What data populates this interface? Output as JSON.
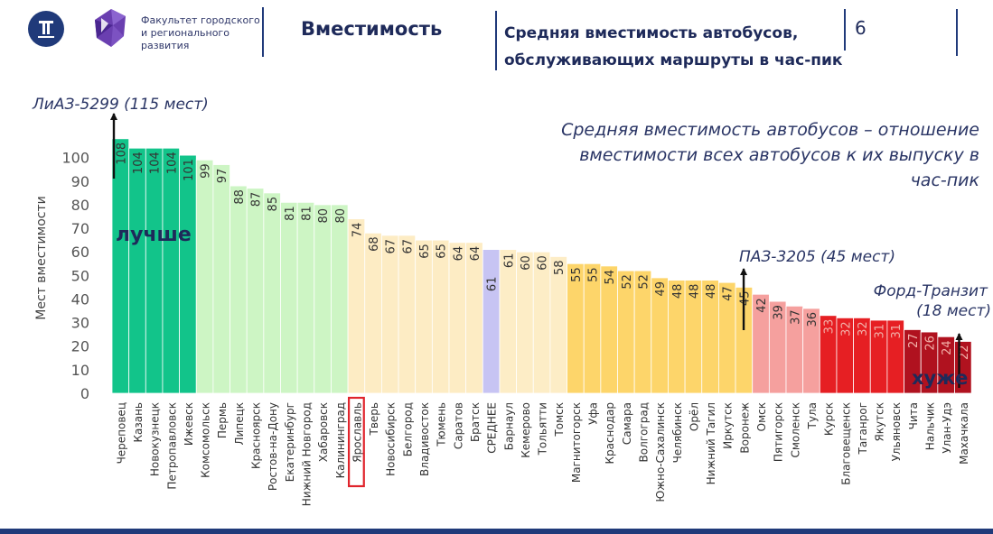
{
  "header": {
    "faculty": "Факультет городского и регионального развития",
    "section_title": "Вместимость",
    "subtitle": "Средняя вместимость автобусов, обслуживающих маршруты в час-пик",
    "page_number": "6",
    "colors": {
      "navy": "#203a7a",
      "purple": "#6a3fb0"
    }
  },
  "definition": "Средняя вместимость автобусов – отношение вместимости всех автобусов к их выпуску в час-пик",
  "chart_data": {
    "type": "bar",
    "ylabel": "Мест вместимости",
    "ylim": [
      0,
      110
    ],
    "yticks": [
      0,
      10,
      20,
      30,
      40,
      50,
      60,
      70,
      80,
      90,
      100
    ],
    "grid": false,
    "highlighted_category": "Ярославль",
    "categories": [
      "Череповец",
      "Казань",
      "Новокузнецк",
      "Петропавловск",
      "Ижевск",
      "Комсомольск",
      "Пермь",
      "Липецк",
      "Красноярск",
      "Ростов-на-Дону",
      "Екатеринбург",
      "Нижний Новгород",
      "Хабаровск",
      "Калининград",
      "Ярославль",
      "Тверь",
      "Новосибирск",
      "Белгород",
      "Владивосток",
      "Тюмень",
      "Саратов",
      "Братск",
      "СРЕДНЕЕ",
      "Барнаул",
      "Кемерово",
      "Тольятти",
      "Томск",
      "Магнитогорск",
      "Уфа",
      "Краснодар",
      "Самара",
      "Волгоград",
      "Южно-Сахалинск",
      "Челябинск",
      "Орёл",
      "Нижний Тагил",
      "Иркутск",
      "Воронеж",
      "Омск",
      "Пятигорск",
      "Смоленск",
      "Тула",
      "Курск",
      "Благовещенск",
      "Таганрог",
      "Якутск",
      "Ульяновск",
      "Чита",
      "Нальчик",
      "Улан-Удэ",
      "Махачкала"
    ],
    "values": [
      108,
      104,
      104,
      104,
      101,
      99,
      97,
      88,
      87,
      85,
      81,
      81,
      80,
      80,
      74,
      68,
      67,
      67,
      65,
      65,
      64,
      64,
      61,
      61,
      60,
      60,
      58,
      55,
      55,
      54,
      52,
      52,
      49,
      48,
      48,
      48,
      47,
      45,
      42,
      39,
      37,
      36,
      33,
      32,
      32,
      31,
      31,
      27,
      26,
      24,
      22
    ],
    "groups": [
      {
        "name": "dark-green",
        "count": 5,
        "color": "#12c48a"
      },
      {
        "name": "light-green",
        "count": 9,
        "color": "#cdf5c4"
      },
      {
        "name": "light-yellow",
        "count": 8,
        "color": "#fdecc4"
      },
      {
        "name": "average",
        "count": 1,
        "color": "#c7c4f3"
      },
      {
        "name": "pale-yellow",
        "count": 4,
        "color": "#fdedc6"
      },
      {
        "name": "yellow",
        "count": 11,
        "color": "#fdd56a"
      },
      {
        "name": "pink",
        "count": 4,
        "color": "#f5a09e"
      },
      {
        "name": "red",
        "count": 5,
        "color": "#e61f23"
      },
      {
        "name": "dark-red",
        "count": 4,
        "color": "#b0121f"
      }
    ],
    "annotations": [
      {
        "text": "ЛиАЗ-5299 (115 мест)",
        "value": 115,
        "category": "Череповец"
      },
      {
        "text": "ПАЗ-3205 (45 мест)",
        "value": 45,
        "category": "Воронеж"
      },
      {
        "text": "Форд-Транзит (18 мест)",
        "value": 18,
        "category": "Махачкала"
      }
    ],
    "labels": {
      "better": "лучше",
      "worse": "хуже"
    }
  }
}
